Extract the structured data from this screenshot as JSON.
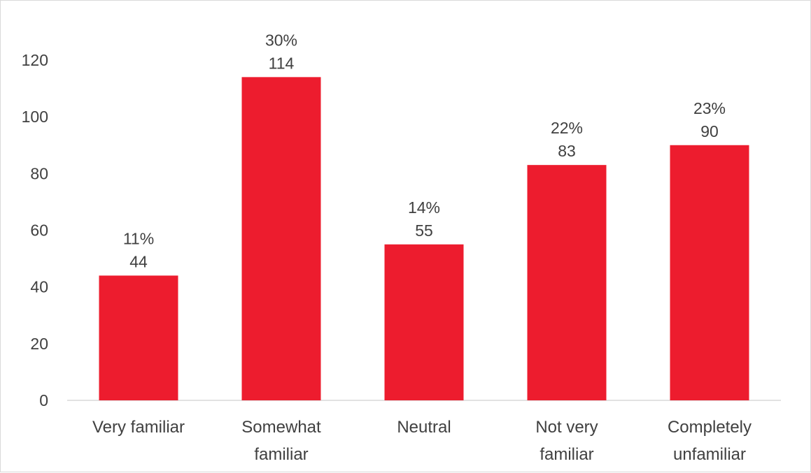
{
  "chart_data": {
    "type": "bar",
    "title": "",
    "xlabel": "",
    "ylabel": "",
    "categories": [
      [
        "Very familiar"
      ],
      [
        "Somewhat",
        "familiar"
      ],
      [
        "Neutral"
      ],
      [
        "Not very",
        "familiar"
      ],
      [
        "Completely",
        "unfamiliar"
      ]
    ],
    "values": [
      44,
      114,
      55,
      83,
      90
    ],
    "percent_labels": [
      "11%",
      "30%",
      "14%",
      "22%",
      "23%"
    ],
    "ylim": [
      0,
      120
    ],
    "yticks": [
      0,
      20,
      40,
      60,
      80,
      100,
      120
    ],
    "grid": false,
    "legend": "none",
    "bar_color": "#ED1C2E"
  }
}
